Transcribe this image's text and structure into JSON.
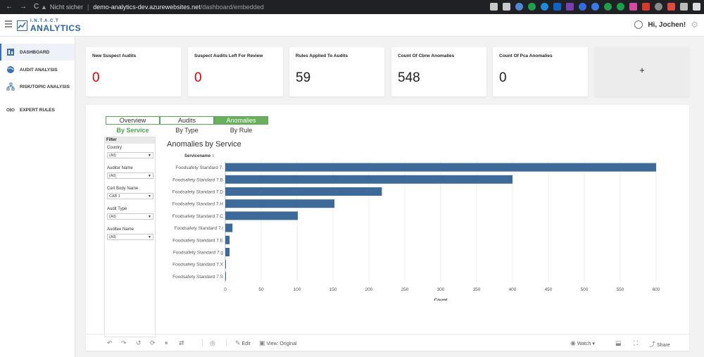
{
  "browser": {
    "nav": {
      "back": "←",
      "forward": "→",
      "reload": "C"
    },
    "security": "Nicht sicher",
    "url_host": "demo-analytics-dev.azurewebsites.net",
    "url_path": "/dashboard/embedded",
    "menu": "⋮"
  },
  "header": {
    "logo_top": "I.N.T.A.C.T",
    "logo_main": "ANALYTICS",
    "greeting": "Hi, Jochen!",
    "settings_icon": "gear-icon"
  },
  "sidebar": {
    "items": [
      {
        "label": "DASHBOARD",
        "icon": "dashboard-icon"
      },
      {
        "label": "AUDIT ANALYSIS",
        "icon": "globe-icon"
      },
      {
        "label": "RISK/TOPIC ANALYSIS",
        "icon": "hierarchy-icon"
      },
      {
        "label": "EXPERT RULES",
        "icon": "rules-icon"
      }
    ]
  },
  "kpis": [
    {
      "title": "New Suspect Audits",
      "value": "0",
      "alert": true
    },
    {
      "title": "Suspect Audits Left For Review",
      "value": "0",
      "alert": true
    },
    {
      "title": "Rules Applied To Audits",
      "value": "59",
      "alert": false
    },
    {
      "title": "Count Of Cbrw Anomalies",
      "value": "548",
      "alert": false
    },
    {
      "title": "Count Of Pca Anomalies",
      "value": "0",
      "alert": false
    }
  ],
  "add_card": {
    "label": "+"
  },
  "embed": {
    "tabs": [
      "Overview",
      "Audits",
      "Anomalies"
    ],
    "active_tab": "Anomalies",
    "subtabs": [
      "By Service",
      "By Type",
      "By Rule"
    ],
    "active_subtab": "By Service",
    "filter": {
      "heading": "Filter",
      "fields": [
        {
          "label": "Country",
          "value": "(All)"
        },
        {
          "label": "Auditor Name",
          "value": "(All)"
        },
        {
          "label": "Cert Body Name",
          "value": "CAB 1"
        },
        {
          "label": "Audit Type",
          "value": "(All)"
        },
        {
          "label": "Auditee Name",
          "value": "(All)"
        }
      ]
    },
    "toolbar": {
      "edit": "Edit",
      "view": "View: Original",
      "watch": "Watch",
      "share": "Share"
    }
  },
  "chart_data": {
    "type": "bar",
    "orientation": "horizontal",
    "title": "Anomalies by Service",
    "column_header": "Servicename",
    "xlabel": "Count",
    "xlim": [
      0,
      600
    ],
    "xticks": [
      0,
      50,
      100,
      150,
      200,
      250,
      300,
      350,
      400,
      450,
      500,
      550,
      600
    ],
    "categories": [
      "Foodsafety Standard 7.",
      "Foodsafety Standard 7.B",
      "Foodsafety Standard 7.D",
      "Foodsafety Standard 7.H",
      "Foodsafety Standard 7.C",
      "Foodsafety Standard 7.I",
      "Foodsafety Standard 7.E",
      "Foodsafety Standard 7.g",
      "Foodsafety Standard 7.X",
      "Foodsafety Standard 7.S"
    ],
    "values": [
      600,
      400,
      218,
      152,
      101,
      10,
      6,
      6,
      1,
      1
    ],
    "bar_color": "#3e6a99",
    "grid": true
  }
}
